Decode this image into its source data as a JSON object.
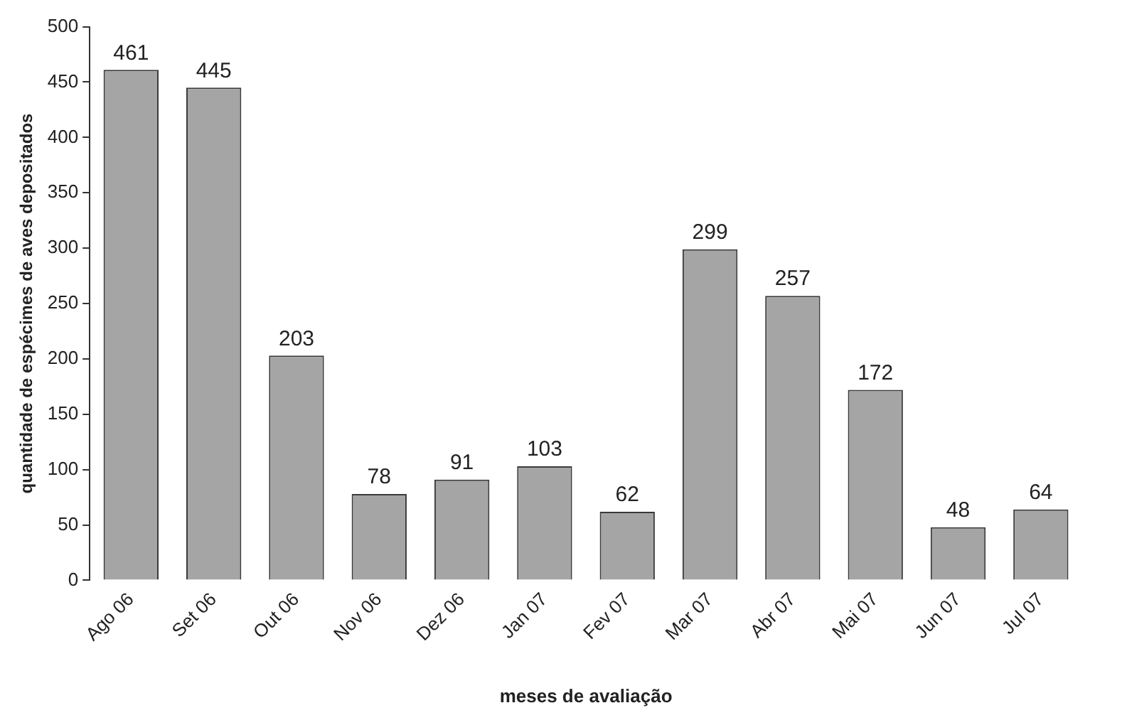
{
  "chart_data": {
    "type": "bar",
    "xlabel": "meses de avaliação",
    "ylabel": "quantidade de espécimes de aves depositados",
    "categories": [
      "Ago 06",
      "Set 06",
      "Out 06",
      "Nov 06",
      "Dez 06",
      "Jan 07",
      "Fev 07",
      "Mar 07",
      "Abr 07",
      "Mai 07",
      "Jun 07",
      "Jul 07"
    ],
    "values": [
      461,
      445,
      203,
      78,
      91,
      103,
      62,
      299,
      257,
      172,
      48,
      64
    ],
    "color": "#a5a5a5",
    "ylim": [
      0,
      500
    ],
    "yticks": [
      0,
      50,
      100,
      150,
      200,
      250,
      300,
      350,
      400,
      450,
      500
    ],
    "grid": false,
    "legend": false,
    "data_labels": true
  }
}
